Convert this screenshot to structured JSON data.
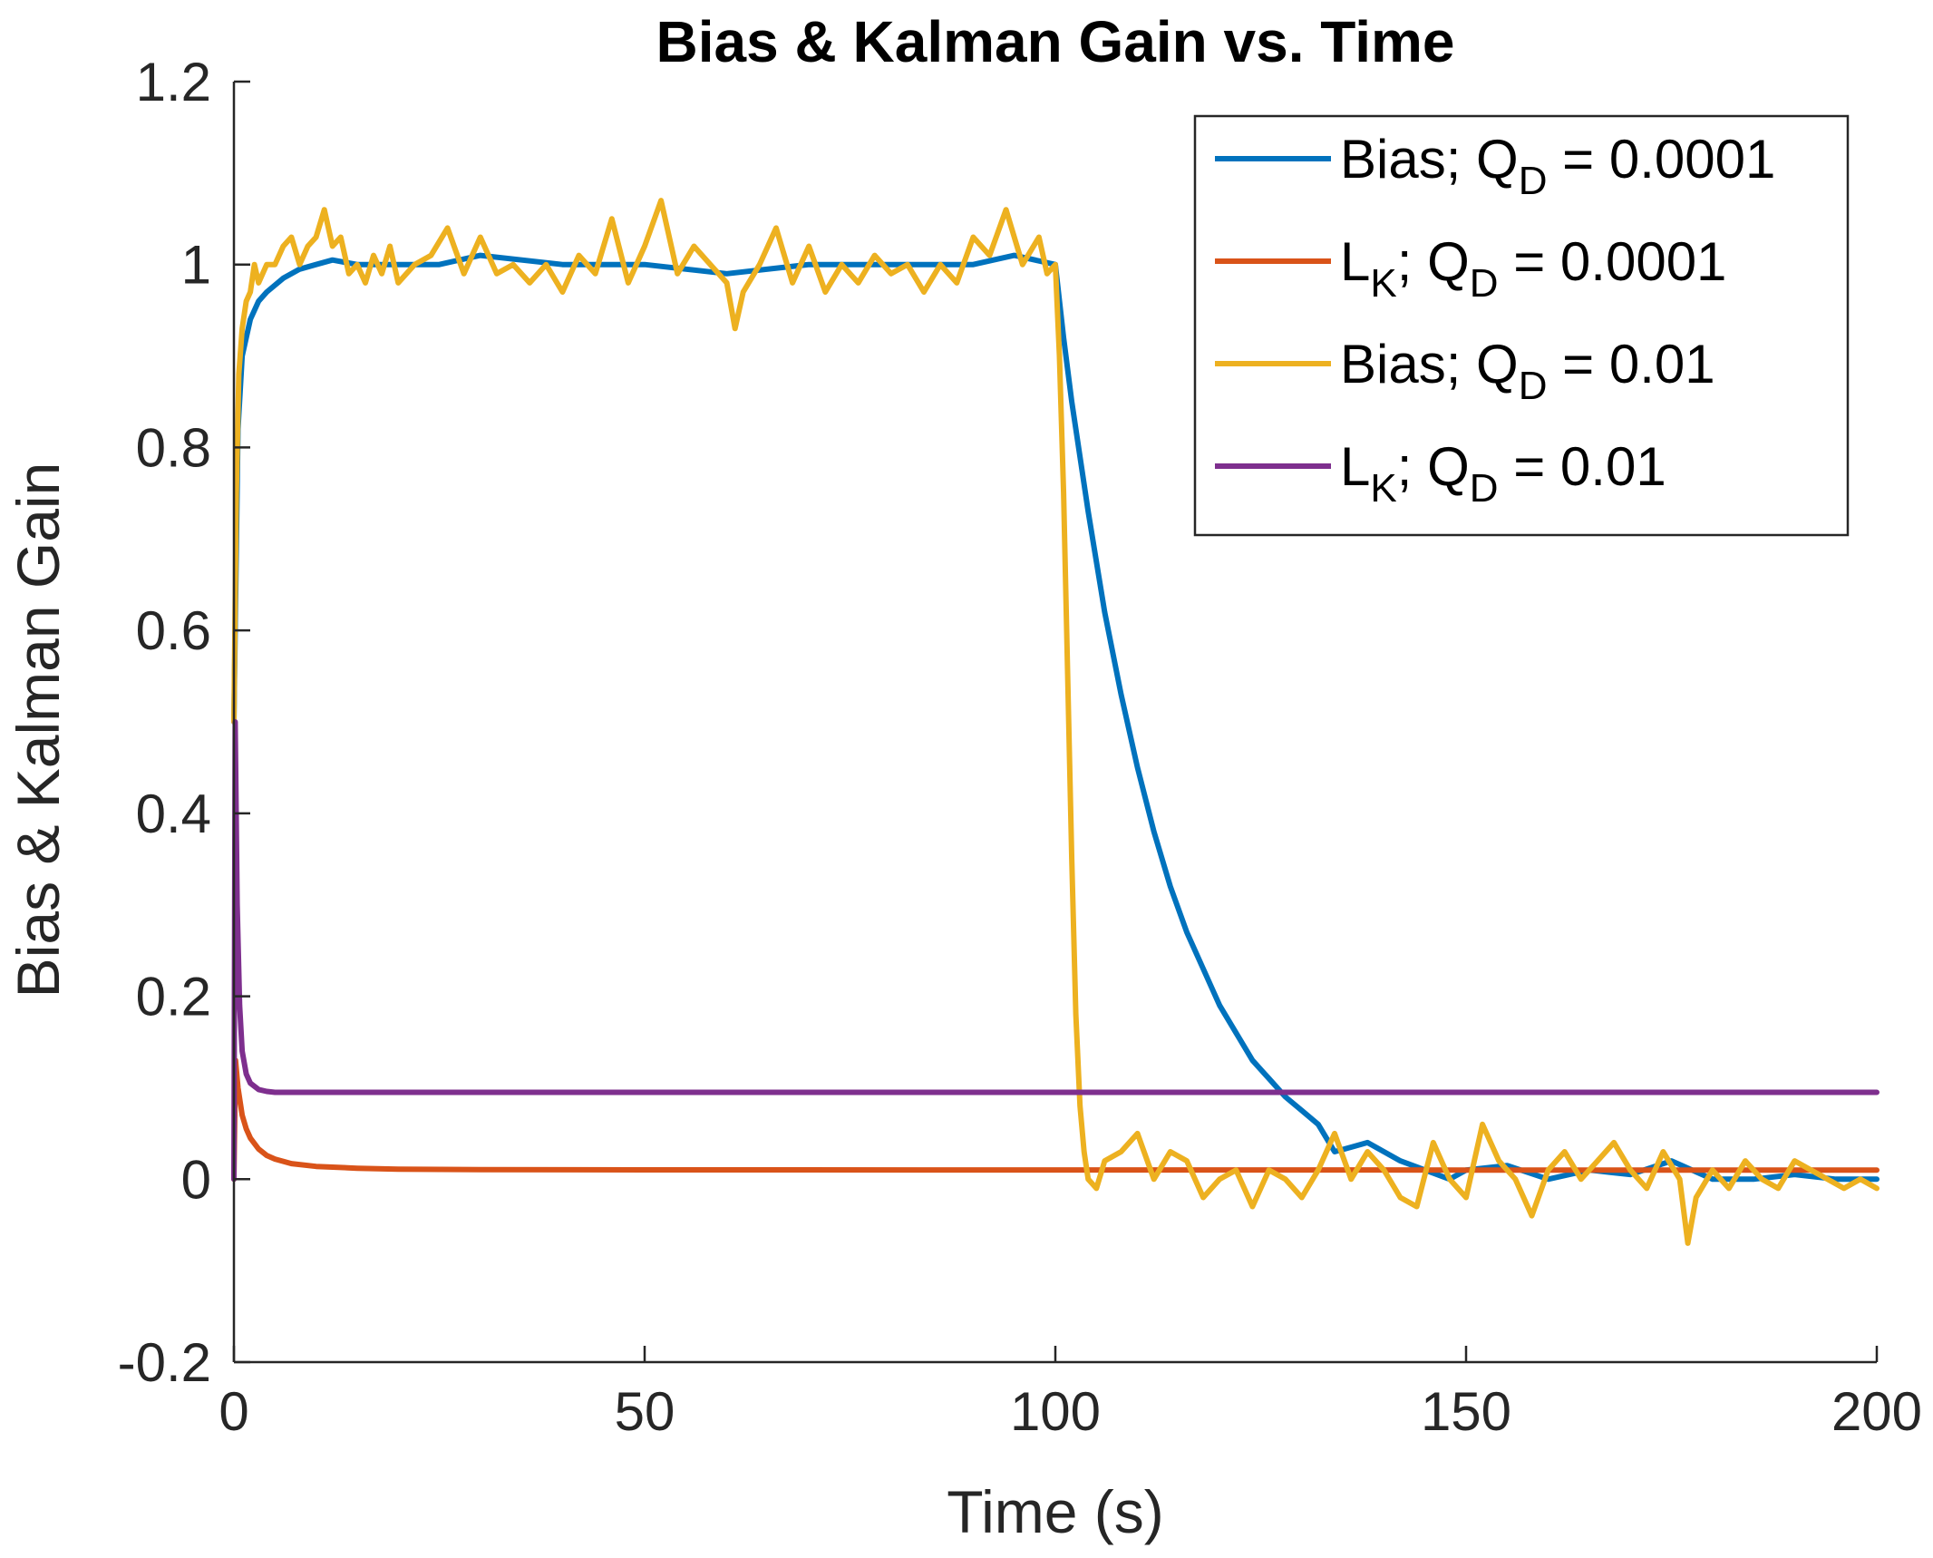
{
  "chart_data": {
    "type": "line",
    "title": "Bias & Kalman Gain vs. Time",
    "xlabel": "Time (s)",
    "ylabel": "Bias & Kalman Gain",
    "xlim": [
      0,
      200
    ],
    "ylim": [
      -0.2,
      1.2
    ],
    "x_ticks": [
      "0",
      "50",
      "100",
      "150",
      "200"
    ],
    "y_ticks": [
      "-0.2",
      "0",
      "0.2",
      "0.4",
      "0.6",
      "0.8",
      "1",
      "1.2"
    ],
    "grid": false,
    "legend_position": "top-right",
    "series": [
      {
        "name": "Bias; Q_D = 0.0001",
        "legend": {
          "prefix": "Bias; Q",
          "sub": "D",
          "suffix": " = 0.0001"
        },
        "color": "#0072BD",
        "x": [
          0,
          0.5,
          1,
          2,
          3,
          4,
          6,
          8,
          10,
          12,
          15,
          20,
          25,
          30,
          40,
          50,
          60,
          70,
          80,
          90,
          95,
          100,
          101,
          102,
          104,
          106,
          108,
          110,
          112,
          114,
          116,
          118,
          120,
          122,
          124,
          126,
          128,
          130,
          132,
          134,
          136,
          138,
          140,
          142,
          145,
          148,
          150,
          155,
          160,
          165,
          170,
          175,
          180,
          185,
          190,
          195,
          200
        ],
        "y": [
          0.5,
          0.82,
          0.9,
          0.94,
          0.96,
          0.97,
          0.985,
          0.995,
          1.0,
          1.005,
          1.0,
          1.0,
          1.0,
          1.01,
          1.0,
          1.0,
          0.99,
          1.0,
          1.0,
          1.0,
          1.01,
          1.0,
          0.92,
          0.85,
          0.73,
          0.62,
          0.53,
          0.45,
          0.38,
          0.32,
          0.27,
          0.23,
          0.19,
          0.16,
          0.13,
          0.11,
          0.09,
          0.075,
          0.06,
          0.03,
          0.035,
          0.04,
          0.03,
          0.02,
          0.01,
          0.0,
          0.01,
          0.015,
          0.0,
          0.01,
          0.005,
          0.02,
          0.0,
          0.0,
          0.005,
          0.0,
          0.0
        ]
      },
      {
        "name": "L_K; Q_D = 0.0001",
        "legend": {
          "prefix": "L",
          "sub_first": "K",
          "middle": "; Q",
          "sub": "D",
          "suffix": " = 0.0001"
        },
        "color": "#D95319",
        "x": [
          0,
          0.2,
          0.5,
          1,
          1.5,
          2,
          3,
          4,
          5,
          7,
          10,
          15,
          20,
          30,
          50,
          100,
          150,
          200
        ],
        "y": [
          0.0,
          0.13,
          0.1,
          0.07,
          0.055,
          0.045,
          0.033,
          0.026,
          0.022,
          0.017,
          0.014,
          0.012,
          0.011,
          0.0105,
          0.0102,
          0.0101,
          0.01,
          0.01
        ]
      },
      {
        "name": "Bias; Q_D = 0.01",
        "legend": {
          "prefix": "Bias; Q",
          "sub": "D",
          "suffix": " = 0.01"
        },
        "color": "#EDB120",
        "x": [
          0,
          0.3,
          0.6,
          1,
          1.5,
          2,
          2.5,
          3,
          4,
          5,
          6,
          7,
          8,
          9,
          10,
          11,
          12,
          13,
          14,
          15,
          16,
          17,
          18,
          19,
          20,
          22,
          24,
          26,
          28,
          30,
          32,
          34,
          36,
          38,
          40,
          42,
          44,
          46,
          48,
          50,
          52,
          54,
          56,
          58,
          60,
          61,
          62,
          64,
          66,
          68,
          70,
          72,
          74,
          76,
          78,
          80,
          82,
          84,
          86,
          88,
          90,
          92,
          94,
          96,
          98,
          99,
          100,
          100.5,
          101,
          101.5,
          102,
          102.5,
          103,
          103.5,
          104,
          105,
          106,
          108,
          110,
          112,
          114,
          116,
          118,
          120,
          122,
          124,
          126,
          128,
          130,
          132,
          134,
          136,
          138,
          140,
          142,
          144,
          146,
          148,
          150,
          152,
          154,
          156,
          158,
          160,
          162,
          164,
          166,
          168,
          170,
          172,
          174,
          176,
          177,
          178,
          180,
          182,
          184,
          186,
          188,
          190,
          192,
          194,
          196,
          198,
          200
        ],
        "y": [
          0.5,
          0.75,
          0.88,
          0.93,
          0.96,
          0.97,
          1.0,
          0.98,
          1.0,
          1.0,
          1.02,
          1.03,
          1.0,
          1.02,
          1.03,
          1.06,
          1.02,
          1.03,
          0.99,
          1.0,
          0.98,
          1.01,
          0.99,
          1.02,
          0.98,
          1.0,
          1.01,
          1.04,
          0.99,
          1.03,
          0.99,
          1.0,
          0.98,
          1.0,
          0.97,
          1.01,
          0.99,
          1.05,
          0.98,
          1.02,
          1.07,
          0.99,
          1.02,
          1.0,
          0.98,
          0.93,
          0.97,
          1.0,
          1.04,
          0.98,
          1.02,
          0.97,
          1.0,
          0.98,
          1.01,
          0.99,
          1.0,
          0.97,
          1.0,
          0.98,
          1.03,
          1.01,
          1.06,
          1.0,
          1.03,
          0.99,
          1.0,
          0.9,
          0.75,
          0.55,
          0.35,
          0.18,
          0.08,
          0.03,
          0.0,
          -0.01,
          0.02,
          0.03,
          0.05,
          0.0,
          0.03,
          0.02,
          -0.02,
          0.0,
          0.01,
          -0.03,
          0.01,
          0.0,
          -0.02,
          0.01,
          0.05,
          0.0,
          0.03,
          0.01,
          -0.02,
          -0.03,
          0.04,
          0.0,
          -0.02,
          0.06,
          0.02,
          0.0,
          -0.04,
          0.01,
          0.03,
          0.0,
          0.02,
          0.04,
          0.01,
          -0.01,
          0.03,
          0.0,
          -0.07,
          -0.02,
          0.01,
          -0.01,
          0.02,
          0.0,
          -0.01,
          0.02,
          0.01,
          0.0,
          -0.01,
          0.0,
          -0.01
        ]
      },
      {
        "name": "L_K; Q_D = 0.01",
        "legend": {
          "prefix": "L",
          "sub_first": "K",
          "middle": "; Q",
          "sub": "D",
          "suffix": " = 0.01"
        },
        "color": "#7E2F8E",
        "x": [
          0,
          0.15,
          0.4,
          0.7,
          1,
          1.5,
          2,
          3,
          4,
          5,
          10,
          50,
          100,
          150,
          200
        ],
        "y": [
          0.0,
          0.5,
          0.3,
          0.19,
          0.14,
          0.115,
          0.105,
          0.098,
          0.096,
          0.095,
          0.095,
          0.095,
          0.095,
          0.095,
          0.095
        ]
      }
    ]
  }
}
